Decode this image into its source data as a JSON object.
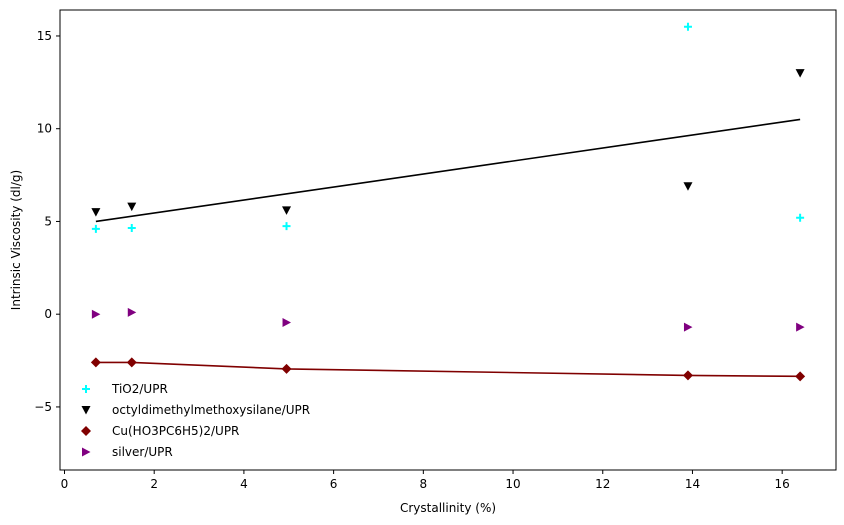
{
  "chart_data": {
    "type": "scatter",
    "title": "",
    "xlabel": "Crystallinity (%)",
    "ylabel": "Intrinsic Viscosity (dl/g)",
    "xlim": [
      -0.1,
      17.2
    ],
    "ylim": [
      -8.4,
      16.4
    ],
    "xticks": [
      0,
      2,
      4,
      6,
      8,
      10,
      12,
      14,
      16
    ],
    "yticks": [
      -5,
      0,
      5,
      10,
      15
    ],
    "ytick_labels": [
      "−5",
      "0",
      "5",
      "10",
      "15"
    ],
    "grid": false,
    "legend_placement": "lower-left",
    "series": [
      {
        "name": "TiO2/UPR",
        "marker": "plus",
        "color": "#00ffff",
        "x": [
          0.7,
          1.5,
          4.95,
          13.9,
          16.4
        ],
        "y": [
          4.6,
          4.65,
          4.75,
          15.5,
          5.2
        ]
      },
      {
        "name": "octyldimethylmethoxysilane/UPR",
        "marker": "triangle-down",
        "color": "#000000",
        "x": [
          0.7,
          1.5,
          4.95,
          13.9,
          16.4
        ],
        "y": [
          5.5,
          5.8,
          5.6,
          6.9,
          13.0
        ]
      },
      {
        "name": "Cu(HO3PC6H5)2/UPR",
        "marker": "diamond",
        "color": "#800000",
        "x": [
          0.7,
          1.5,
          4.95,
          13.9,
          16.4
        ],
        "y": [
          -2.6,
          -2.6,
          -2.95,
          -3.3,
          -3.35
        ]
      },
      {
        "name": "silver/UPR",
        "marker": "triangle-right",
        "color": "#800080",
        "x": [
          0.7,
          1.5,
          4.95,
          13.9,
          16.4
        ],
        "y": [
          0.0,
          0.1,
          -0.45,
          -0.7,
          -0.7
        ]
      }
    ],
    "lines": [
      {
        "color": "#000000",
        "x": [
          0.7,
          16.4
        ],
        "y": [
          5.0,
          10.5
        ]
      },
      {
        "color": "#800000",
        "x": [
          0.7,
          1.5,
          4.95,
          13.9,
          16.4
        ],
        "y": [
          -2.6,
          -2.6,
          -2.95,
          -3.3,
          -3.35
        ]
      }
    ]
  }
}
